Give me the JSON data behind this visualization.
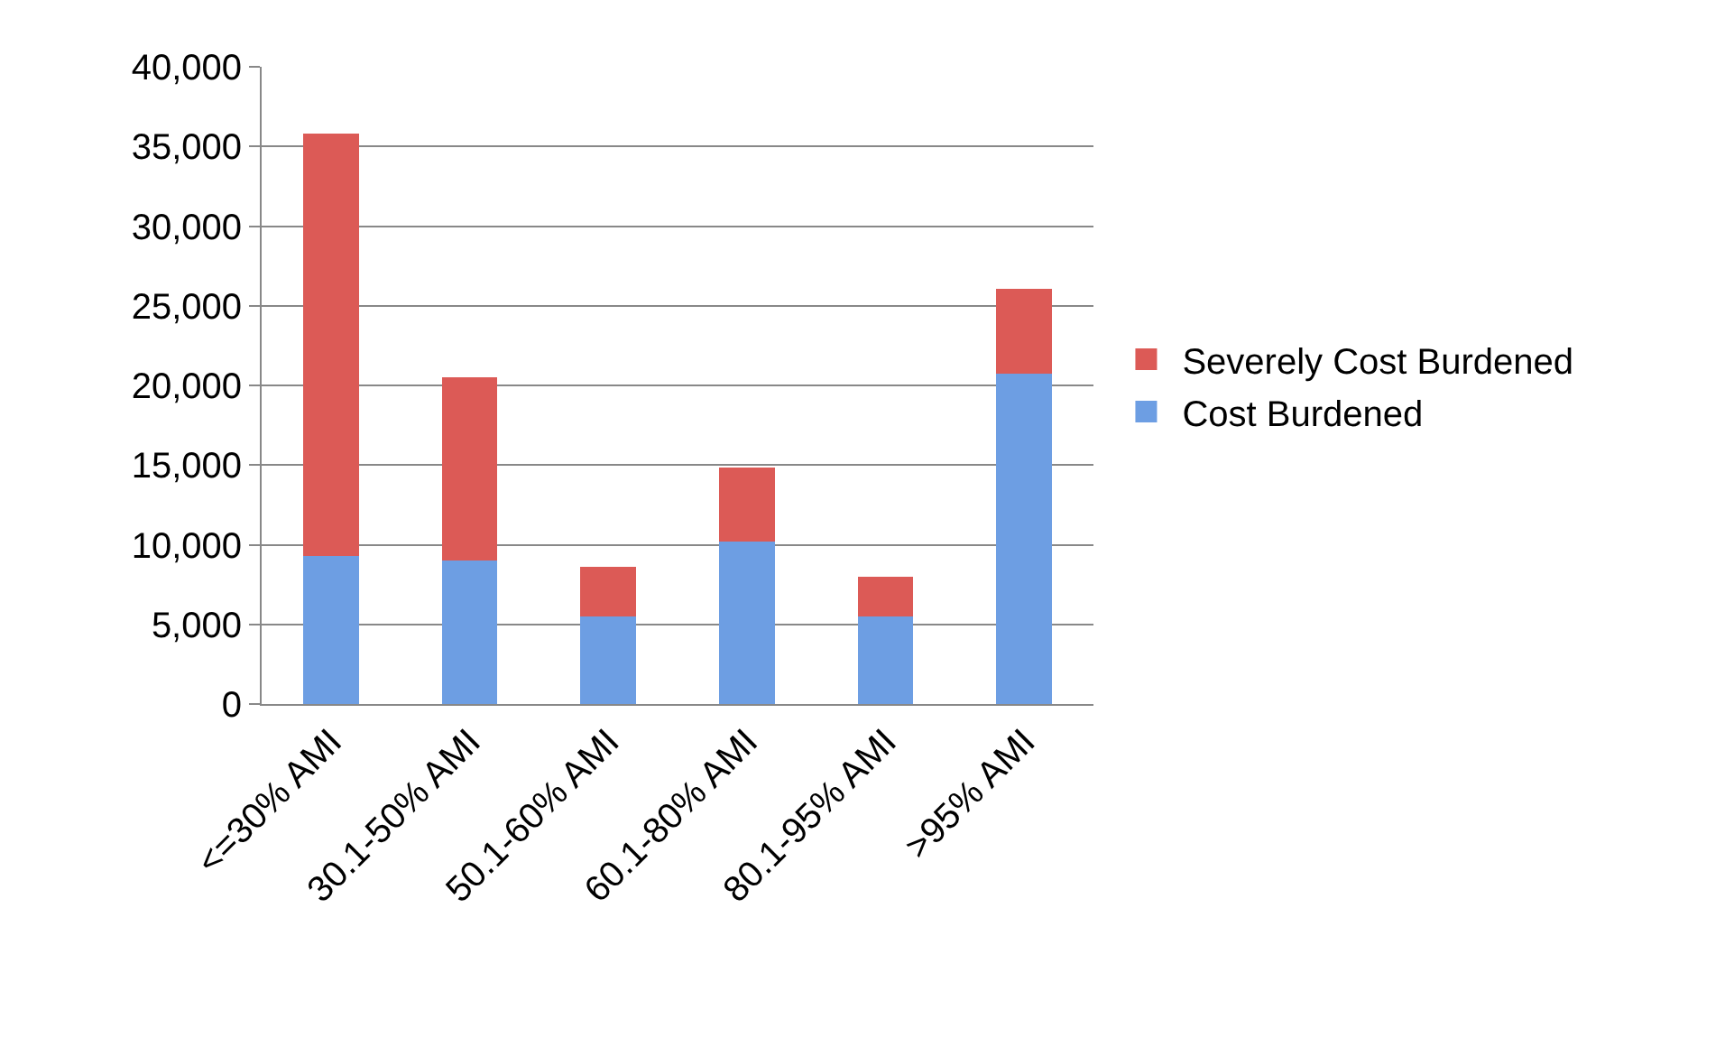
{
  "chart_data": {
    "type": "bar",
    "stacked": true,
    "categories": [
      "<=30% AMI",
      "30.1-50% AMI",
      "50.1-60% AMI",
      "60.1-80% AMI",
      "80.1-95% AMI",
      ">95% AMI"
    ],
    "series": [
      {
        "name": "Cost Burdened",
        "color": "#6d9ee3",
        "values": [
          9300,
          9000,
          5500,
          10200,
          5500,
          20750
        ]
      },
      {
        "name": "Severely Cost Burdened",
        "color": "#dc5a56",
        "values": [
          26500,
          11500,
          3100,
          4650,
          2500,
          5300
        ]
      }
    ],
    "ylim": [
      0,
      40000
    ],
    "yticks": [
      {
        "value": 0,
        "label": "0"
      },
      {
        "value": 5000,
        "label": "5,000"
      },
      {
        "value": 10000,
        "label": "10,000"
      },
      {
        "value": 15000,
        "label": "15,000"
      },
      {
        "value": 20000,
        "label": "20,000"
      },
      {
        "value": 25000,
        "label": "25,000"
      },
      {
        "value": 30000,
        "label": "30,000"
      },
      {
        "value": 35000,
        "label": "35,000"
      },
      {
        "value": 40000,
        "label": "40,000"
      }
    ],
    "grid": "y",
    "legend": "right"
  }
}
